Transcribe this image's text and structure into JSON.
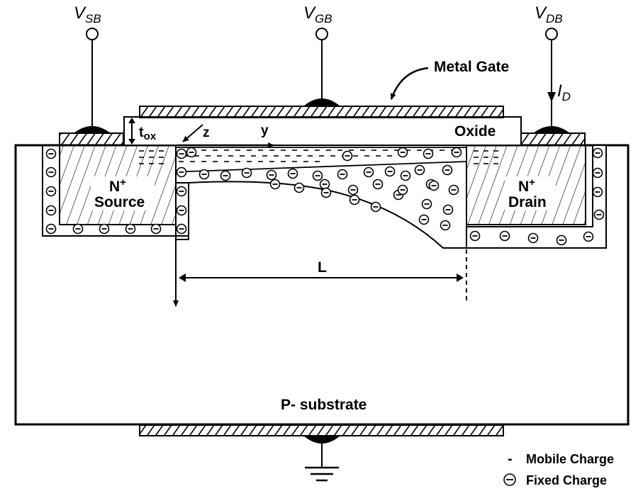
{
  "terminals": {
    "source": {
      "main": "V",
      "sub": "SB"
    },
    "gate": {
      "main": "V",
      "sub": "GB"
    },
    "drain": {
      "main": "V",
      "sub": "DB"
    },
    "drain_current": {
      "main": "I",
      "sub": "D"
    }
  },
  "labels": {
    "metal_gate": "Metal Gate",
    "oxide": "Oxide",
    "tox_main": "t",
    "tox_sub": "ox",
    "axis_z": "z",
    "axis_y": "y",
    "channel_length": "L",
    "source_n": "N",
    "source_plus": "+",
    "source_name": "Source",
    "drain_n": "N",
    "drain_plus": "+",
    "drain_name": "Drain",
    "substrate": "P- substrate"
  },
  "legend": {
    "mobile_symbol": "-",
    "mobile_label": "Mobile Charge",
    "fixed_label": "Fixed Charge"
  },
  "colors": {
    "stroke": "#000000",
    "background": "#ffffff"
  }
}
